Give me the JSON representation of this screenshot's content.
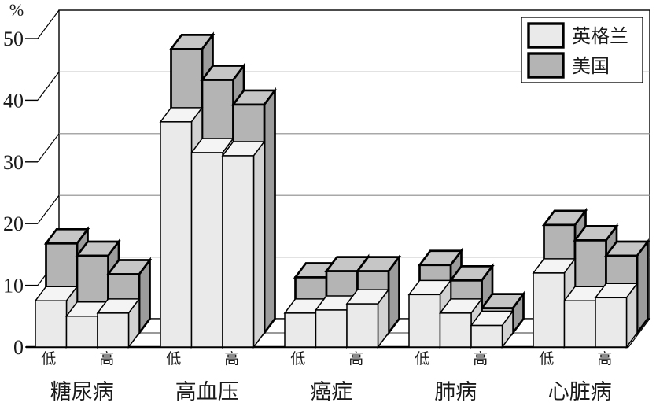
{
  "chart_data": {
    "type": "bar",
    "style": "3d-clustered",
    "title": "",
    "unit_label": "%",
    "ylabel": "%",
    "xlabel": "",
    "ylim": [
      0,
      50
    ],
    "y_ticks": [
      0,
      10,
      20,
      30,
      40,
      50
    ],
    "grid": true,
    "legend_position": "top-right",
    "categories": [
      "糖尿病",
      "高血压",
      "癌症",
      "肺病",
      "心脏病"
    ],
    "group_sublabels": [
      "低",
      "高"
    ],
    "bars_per_group": 3,
    "series": [
      {
        "name": "英格兰",
        "row": "front",
        "values": [
          [
            7.5,
            5,
            5.5
          ],
          [
            36.5,
            31.5,
            31
          ],
          [
            5.5,
            6,
            7
          ],
          [
            8.5,
            5.5,
            3.5
          ],
          [
            12,
            7.5,
            8
          ]
        ]
      },
      {
        "name": "美国",
        "row": "back",
        "values": [
          [
            14.5,
            12.5,
            9.5
          ],
          [
            46,
            41,
            37
          ],
          [
            9,
            10,
            10
          ],
          [
            11,
            8.5,
            4
          ],
          [
            17.5,
            15,
            12.5
          ]
        ]
      }
    ]
  },
  "colors": {
    "england_front": "#eaeaea",
    "england_top": "#f4f4f4",
    "england_side": "#d2d2d2",
    "us_front": "#b4b4b4",
    "us_top": "#c6c6c6",
    "us_side": "#9c9c9c",
    "gridline": "#8c8c8c",
    "outline": "#000000",
    "background": "#ffffff",
    "text": "#1a1a1a"
  }
}
